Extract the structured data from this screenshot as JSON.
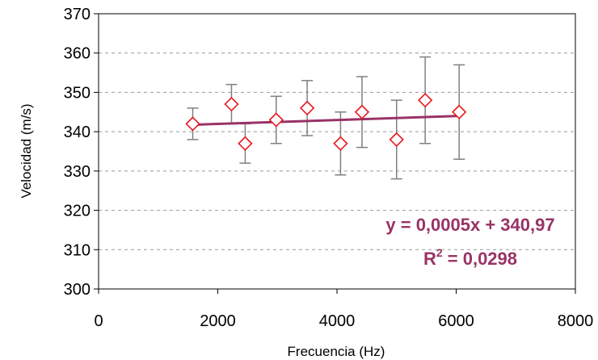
{
  "chart_data": {
    "type": "scatter",
    "xlabel": "Frecuencia (Hz)",
    "ylabel": "Velocidad (m/s)",
    "xlim": [
      0,
      8000
    ],
    "ylim": [
      300,
      370
    ],
    "xticks": [
      0,
      2000,
      4000,
      6000,
      8000
    ],
    "yticks": [
      300,
      310,
      320,
      330,
      340,
      350,
      360,
      370
    ],
    "grid": "horizontal dashed",
    "points": [
      {
        "x": 1580,
        "y": 342,
        "err_low": 338,
        "err_high": 346
      },
      {
        "x": 2230,
        "y": 347,
        "err_low": 342,
        "err_high": 352
      },
      {
        "x": 2460,
        "y": 337,
        "err_low": 332,
        "err_high": 342
      },
      {
        "x": 2980,
        "y": 343,
        "err_low": 337,
        "err_high": 349
      },
      {
        "x": 3500,
        "y": 346,
        "err_low": 339,
        "err_high": 353
      },
      {
        "x": 4060,
        "y": 337,
        "err_low": 329,
        "err_high": 345
      },
      {
        "x": 4420,
        "y": 345,
        "err_low": 336,
        "err_high": 354
      },
      {
        "x": 5000,
        "y": 338,
        "err_low": 328,
        "err_high": 348
      },
      {
        "x": 5480,
        "y": 348,
        "err_low": 337,
        "err_high": 359
      },
      {
        "x": 6050,
        "y": 345,
        "err_low": 333,
        "err_high": 357
      }
    ],
    "trendline": {
      "x_start": 1580,
      "x_end": 6050,
      "slope": 0.0005,
      "intercept": 340.97
    },
    "equation_label": "y = 0,0005x + 340,97",
    "r2_prefix": "R",
    "r2_exp": "2",
    "r2_value": " = 0,0298",
    "colors": {
      "marker": "#e8141e",
      "errorbar": "#808080",
      "trendline": "#993366",
      "grid": "#999999"
    }
  }
}
